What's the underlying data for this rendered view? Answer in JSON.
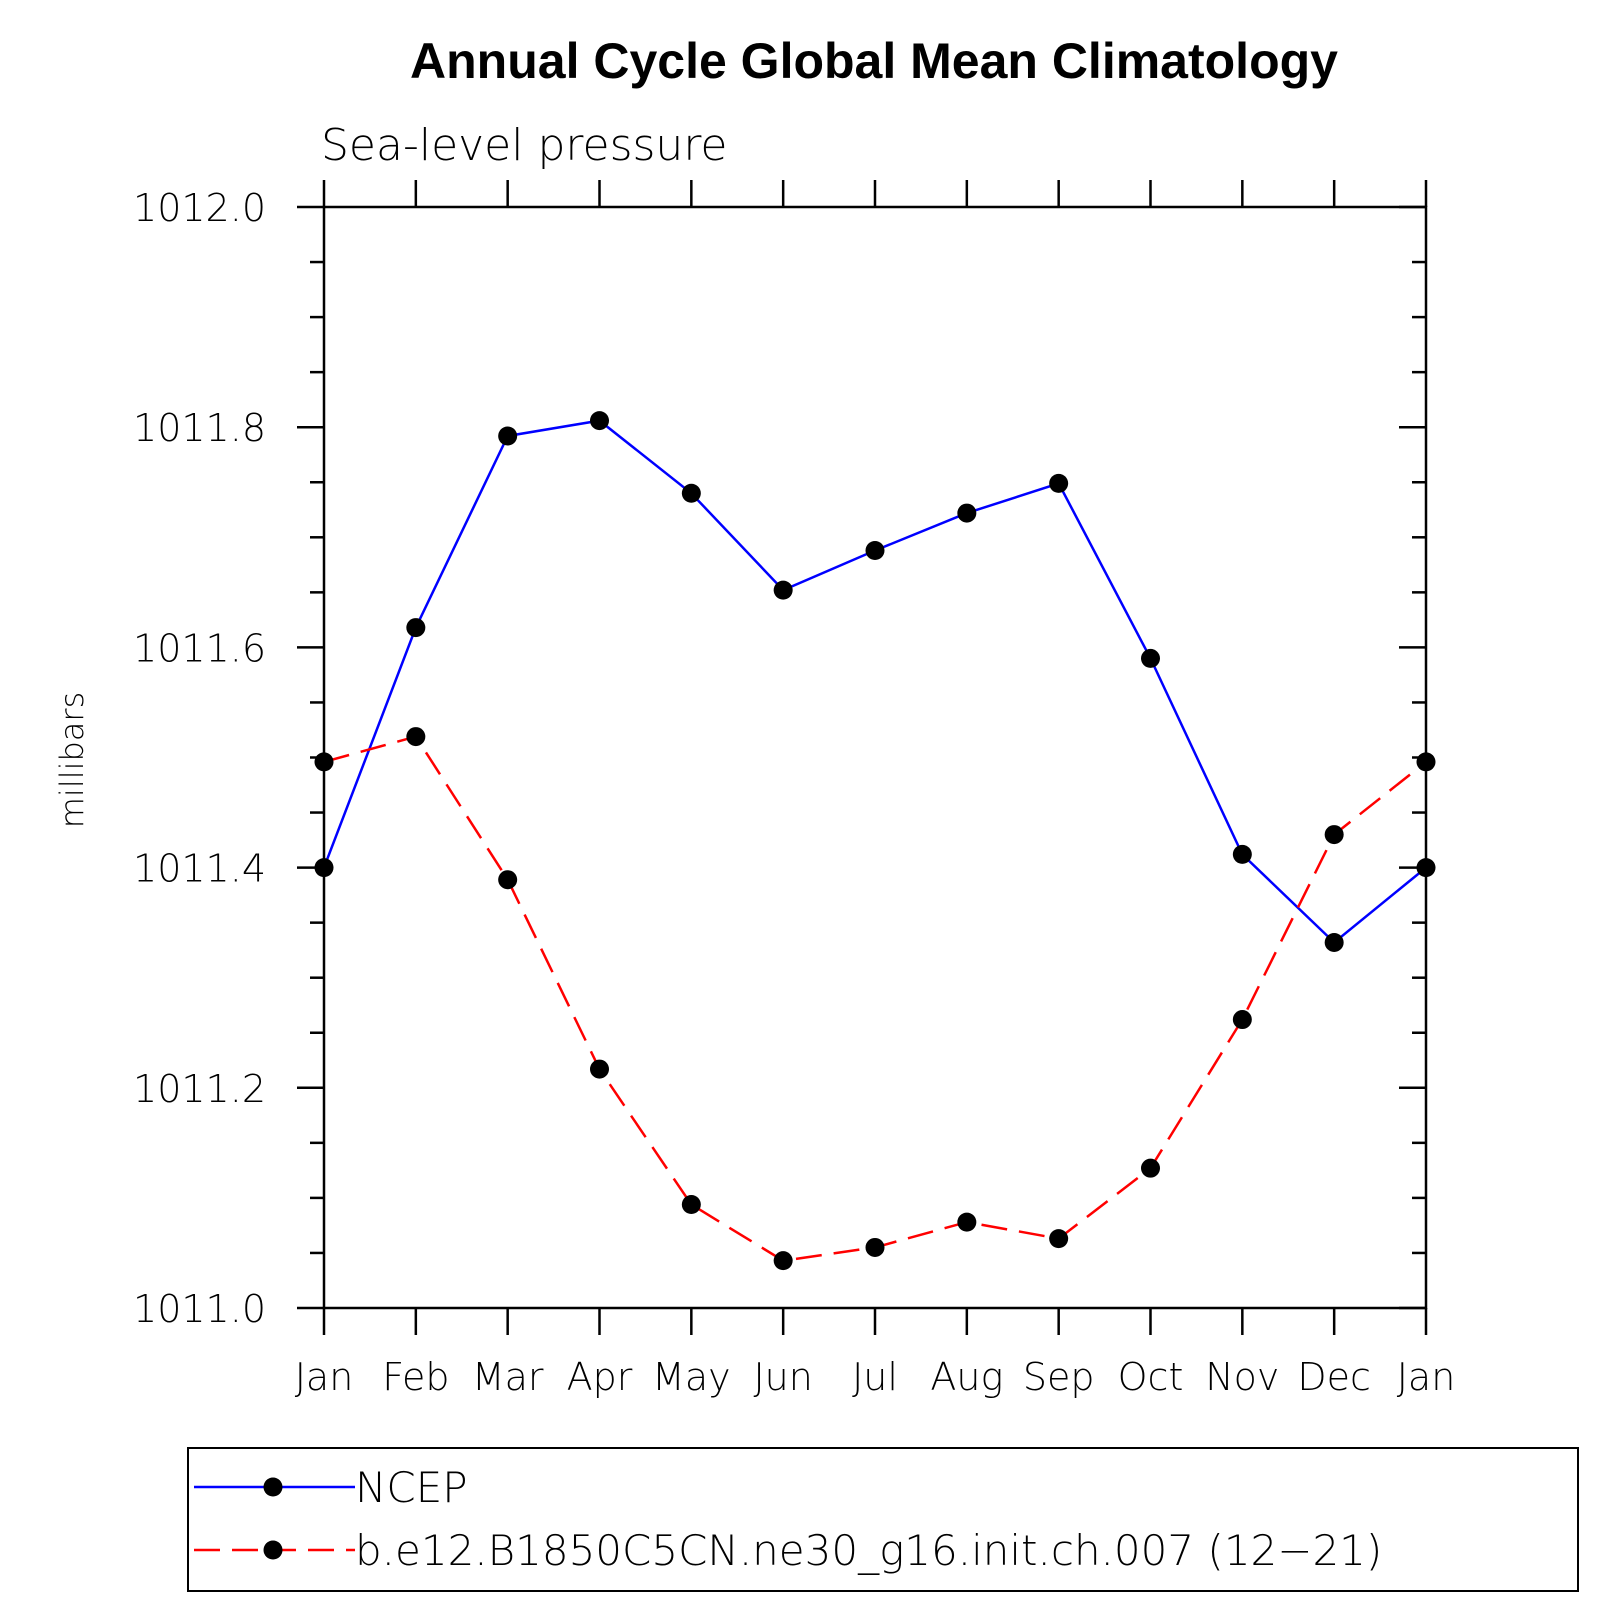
{
  "chart_data": {
    "type": "line",
    "title": "Annual Cycle Global Mean Climatology",
    "subtitle": "Sea-level pressure",
    "xlabel": "",
    "ylabel": "millibars",
    "categories": [
      "Jan",
      "Feb",
      "Mar",
      "Apr",
      "May",
      "Jun",
      "Jul",
      "Aug",
      "Sep",
      "Oct",
      "Nov",
      "Dec",
      "Jan"
    ],
    "ylim": [
      1011.0,
      1012.0
    ],
    "yticks": [
      "1011.0",
      "1011.2",
      "1011.4",
      "1011.6",
      "1011.8",
      "1012.0"
    ],
    "ytick_values": [
      1011.0,
      1011.2,
      1011.4,
      1011.6,
      1011.8,
      1012.0
    ],
    "series": [
      {
        "name": "NCEP",
        "color": "#0000ff",
        "dashed": false,
        "values": [
          1011.4,
          1011.618,
          1011.792,
          1011.806,
          1011.74,
          1011.652,
          1011.688,
          1011.722,
          1011.749,
          1011.59,
          1011.412,
          1011.332,
          1011.4
        ]
      },
      {
        "name": "b.e12.B1850C5CN.ne30_g16.init.ch.007 (12−21)",
        "color": "#ff0000",
        "dashed": true,
        "values": [
          1011.496,
          1011.519,
          1011.389,
          1011.217,
          1011.094,
          1011.043,
          1011.055,
          1011.078,
          1011.063,
          1011.127,
          1011.262,
          1011.43,
          1011.496
        ]
      }
    ],
    "grid": false,
    "legend_position": "bottom"
  }
}
